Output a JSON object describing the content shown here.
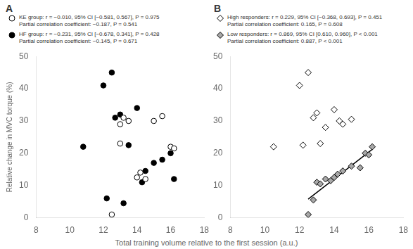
{
  "chart_data": [
    {
      "type": "scatter",
      "title": "A",
      "xlabel": "Total training volume relative to the first session (a.u.)",
      "ylabel": "Relative change in MVC torque (%)",
      "xlim": [
        8,
        18
      ],
      "xticks": [
        8,
        10,
        12,
        14,
        16,
        18
      ],
      "ylim": [
        0,
        50
      ],
      "yticks": [
        0,
        10,
        20,
        30,
        40,
        50
      ],
      "grid": false,
      "series": [
        {
          "name": "KE group: r = −0.010, 95% CI [−0.581, 0.567], P = 0.975\nPartial correlation coefficient: −0.187, P = 0.541",
          "color": "#ffffff",
          "marker": "circle",
          "x": [
            12.5,
            13.0,
            13.0,
            13.2,
            13.5,
            14.0,
            14.2,
            14.5,
            15.0,
            15.5,
            16.0,
            16.2
          ],
          "values": [
            1.0,
            23.0,
            29.0,
            31.0,
            30.0,
            12.5,
            14.0,
            12.0,
            30.0,
            31.5,
            22.0,
            21.5
          ]
        },
        {
          "name": "HF group: r = −0.231, 95% CI [−0.678, 0.341], P = 0.428\nPartial correlation coefficient: −0.145, P = 0.671",
          "color": "#000000",
          "marker": "circle",
          "x": [
            10.8,
            12.0,
            12.2,
            12.5,
            12.7,
            13.0,
            13.2,
            13.5,
            14.0,
            14.3,
            14.5,
            15.0,
            15.5,
            16.0,
            16.2
          ],
          "values": [
            22.0,
            41.0,
            6.0,
            45.0,
            31.0,
            32.0,
            4.5,
            22.5,
            34.0,
            11.0,
            14.5,
            17.0,
            18.0,
            20.0,
            12.0
          ]
        }
      ]
    },
    {
      "type": "scatter",
      "title": "B",
      "xlim": [
        8,
        18
      ],
      "xticks": [
        8,
        10,
        12,
        14,
        16,
        18
      ],
      "ylim": [
        0,
        50
      ],
      "yticks": [
        0,
        10,
        20,
        30,
        40,
        50
      ],
      "grid": false,
      "series": [
        {
          "type": "line",
          "color": "#000000",
          "line_style": "solid",
          "x": [
            12.5,
            16.2
          ],
          "values": [
            5.756,
            21.21
          ]
        },
        {
          "name": "High responders: r = 0.229, 95% CI [−0.368, 0.693], P = 0.451\nPartial correlation coefficient: 0.165, P = 0.608",
          "color": "#ffffff",
          "marker": "diamond",
          "x": [
            10.5,
            12.0,
            12.2,
            12.5,
            12.8,
            13.0,
            13.2,
            13.5,
            14.0,
            14.3,
            14.5,
            15.0
          ],
          "values": [
            22.0,
            41.0,
            22.5,
            45.0,
            31.0,
            32.5,
            23.0,
            28.0,
            33.5,
            30.0,
            29.0,
            30.5
          ]
        },
        {
          "name": "Low responders: r = 0.869, 95% CI [0.610, 0.960], P < 0.001\nPartial correlation coefficient: 0.887, P < 0.001",
          "color": "#a8a8a8",
          "marker": "diamond",
          "x": [
            12.5,
            12.8,
            13.0,
            13.2,
            13.5,
            13.8,
            14.0,
            14.2,
            14.5,
            15.0,
            15.5,
            15.8,
            16.0,
            16.2
          ],
          "values": [
            1.0,
            5.5,
            11.0,
            10.5,
            12.0,
            11.5,
            12.5,
            13.5,
            14.5,
            16.0,
            15.5,
            20.0,
            19.5,
            22.0
          ]
        }
      ]
    }
  ]
}
